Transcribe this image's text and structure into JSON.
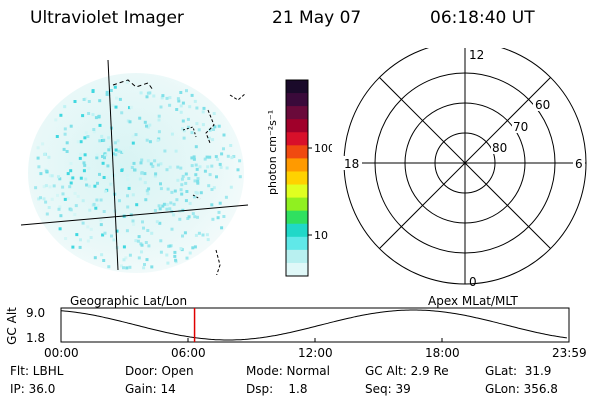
{
  "header": {
    "instrument": "Ultraviolet Imager",
    "date": "21 May 07",
    "time": "06:18:40 UT"
  },
  "colorbar": {
    "label": "photon cm⁻²s⁻¹",
    "ticks": [
      "100",
      "10"
    ],
    "colors": [
      "#1a0a2a",
      "#3a0a3a",
      "#6a0a3a",
      "#a0002a",
      "#d8102a",
      "#f04a10",
      "#ff9a00",
      "#ffd200",
      "#e0ff20",
      "#90f020",
      "#30e060",
      "#20d8c8",
      "#60e8e8",
      "#b8f0f0",
      "#e0f8f8"
    ]
  },
  "polar_plot": {
    "mlt_labels": [
      "12",
      "18",
      "6",
      "0"
    ],
    "lat_labels": [
      "60",
      "70",
      "80"
    ]
  },
  "timeline": {
    "left_label": "Geographic Lat/Lon",
    "right_label": "Apex MLat/MLT",
    "axis_label": "GC Alt",
    "y_ticks": [
      "9.0",
      "1.8"
    ],
    "x_ticks": [
      "00:00",
      "06:00",
      "12:00",
      "18:00",
      "23:59"
    ],
    "current_time_hours": 6.31,
    "marker_color": "#e00000"
  },
  "info": {
    "flt": "Flt: LBHL",
    "ip": "IP: 36.0",
    "door": "Door: Open",
    "gain": "Gain: 14",
    "mode": "Mode: Normal",
    "dsp": "Dsp:    1.8",
    "gcalt": "GC Alt: 2.9 Re",
    "seq": "Seq: 39",
    "glat": "GLat:  31.9",
    "glon": "GLon: 356.8"
  }
}
